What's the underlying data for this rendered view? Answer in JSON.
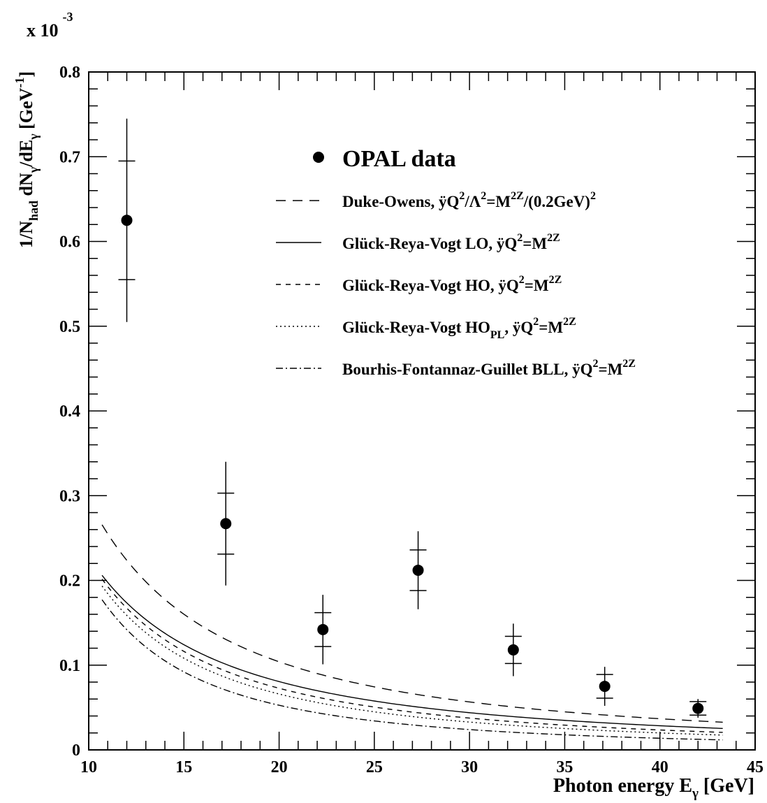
{
  "chart_data": {
    "type": "scatter",
    "scale_label": "x 10",
    "scale_exponent": "-3",
    "xlabel": {
      "main": "Photon energy E",
      "sub": "γ",
      "tail": " [GeV]"
    },
    "ylabel": {
      "p1": "1/N",
      "s1": "had",
      "p2": " dN",
      "s2": "γ",
      "p3": "/dE",
      "s3": "γ",
      "p4": " [GeV",
      "sup": "-1",
      "p5": "]"
    },
    "xlim": [
      10,
      45
    ],
    "ylim": [
      0,
      0.8
    ],
    "x_ticks": [
      "10",
      "15",
      "20",
      "25",
      "30",
      "35",
      "40",
      "45"
    ],
    "y_ticks": [
      "0",
      "0.1",
      "0.2",
      "0.3",
      "0.4",
      "0.5",
      "0.6",
      "0.7",
      "0.8"
    ],
    "points": {
      "name": "OPAL data",
      "x": [
        12.0,
        17.2,
        22.3,
        27.3,
        32.3,
        37.1,
        42.0
      ],
      "y": [
        0.625,
        0.267,
        0.142,
        0.212,
        0.118,
        0.075,
        0.049
      ],
      "err_stat": [
        0.07,
        0.036,
        0.02,
        0.024,
        0.016,
        0.014,
        0.008
      ],
      "err_tot": [
        0.12,
        0.073,
        0.041,
        0.046,
        0.031,
        0.023,
        0.011
      ]
    },
    "curves": [
      {
        "name": "Duke-Owens",
        "coef": 9.3,
        "exp": 1.5
      },
      {
        "name": "Glück-Reya-Vogt LO",
        "coef": 7.21,
        "exp": 1.5
      },
      {
        "name": "Glück-Reya-Vogt HO",
        "coef": 9.6,
        "exp": 1.63
      },
      {
        "name": "Glück-Reya-Vogt HO PL",
        "coef": 11.4,
        "exp": 1.72
      },
      {
        "name": "Bourhis-Fontannaz-Guillet BLL",
        "coef": 17.6,
        "exp": 1.94
      }
    ],
    "x_range": [
      10.7,
      43.3
    ]
  },
  "legend": {
    "title": "OPAL data",
    "entries": [
      {
        "parts": [
          "Duke-Owens, ÿQ",
          "2",
          "/Λ",
          "2",
          "=M",
          "2Z",
          "/(0.2GeV)",
          "2",
          ""
        ]
      },
      {
        "parts": [
          "Glück-Reya-Vogt LO, ÿQ",
          "2",
          "=M",
          "2Z"
        ]
      },
      {
        "parts": [
          "Glück-Reya-Vogt HO, ÿQ",
          "2",
          "=M",
          "2Z"
        ]
      },
      {
        "parts": [
          "Glück-Reya-Vogt HO",
          "PL",
          ", ÿQ",
          "2",
          "=M",
          "2Z"
        ]
      },
      {
        "parts": [
          "Bourhis-Fontannaz-Guillet BLL, ÿQ",
          "2",
          "=M",
          "2Z"
        ]
      }
    ]
  },
  "styles": {
    "line_color": "#000000",
    "dashes": [
      "14,10",
      "",
      "7,7",
      "2,4",
      "10,4,2,4"
    ]
  }
}
